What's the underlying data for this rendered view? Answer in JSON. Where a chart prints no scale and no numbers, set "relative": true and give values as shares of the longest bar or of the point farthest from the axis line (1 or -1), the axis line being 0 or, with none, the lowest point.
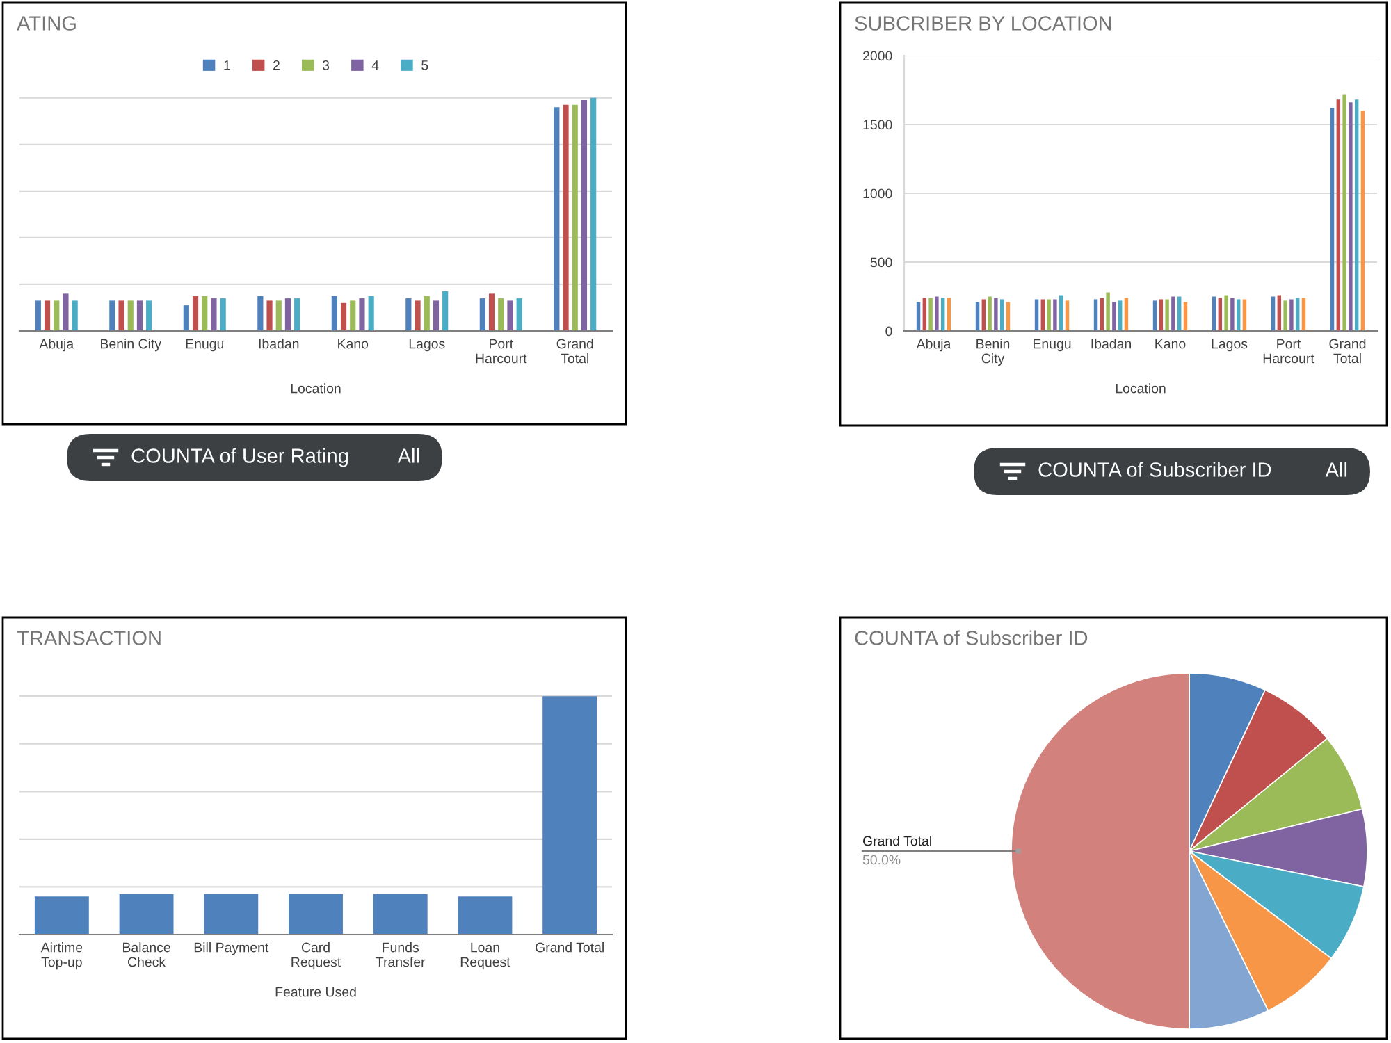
{
  "chart_data": [
    {
      "type": "bar",
      "title": "ATING",
      "xlabel": "Location",
      "categories": [
        "Abuja",
        "Benin City",
        "Enugu",
        "Ibadan",
        "Kano",
        "Lagos",
        "Port Harcourt",
        "Grand Total"
      ],
      "series": [
        {
          "name": "1",
          "color": "#4f81bd",
          "values": [
            0.13,
            0.13,
            0.11,
            0.15,
            0.15,
            0.14,
            0.14,
            0.96
          ]
        },
        {
          "name": "2",
          "color": "#c0504d",
          "values": [
            0.13,
            0.13,
            0.15,
            0.13,
            0.12,
            0.13,
            0.16,
            0.97
          ]
        },
        {
          "name": "3",
          "color": "#9bbb59",
          "values": [
            0.13,
            0.13,
            0.15,
            0.13,
            0.13,
            0.15,
            0.14,
            0.97
          ]
        },
        {
          "name": "4",
          "color": "#8064a2",
          "values": [
            0.16,
            0.13,
            0.14,
            0.14,
            0.14,
            0.13,
            0.13,
            0.99
          ]
        },
        {
          "name": "5",
          "color": "#4bacc6",
          "values": [
            0.13,
            0.13,
            0.14,
            0.14,
            0.15,
            0.17,
            0.14,
            1
          ]
        }
      ],
      "relative": true,
      "grid": "y",
      "legend": "top"
    },
    {
      "type": "bar",
      "title": "SUBCRIBER BY LOCATION",
      "xlabel": "Location",
      "categories": [
        "Abuja",
        "Benin City",
        "Enugu",
        "Ibadan",
        "Kano",
        "Lagos",
        "Port Harcourt",
        "Grand Total"
      ],
      "series": [
        {
          "color": "#4f81bd",
          "values": [
            210,
            210,
            230,
            230,
            220,
            250,
            250,
            1620
          ]
        },
        {
          "color": "#c0504d",
          "values": [
            240,
            230,
            230,
            240,
            230,
            240,
            260,
            1680
          ]
        },
        {
          "color": "#9bbb59",
          "values": [
            240,
            250,
            230,
            280,
            230,
            260,
            220,
            1720
          ]
        },
        {
          "color": "#8064a2",
          "values": [
            250,
            240,
            230,
            210,
            250,
            240,
            230,
            1660
          ]
        },
        {
          "color": "#4bacc6",
          "values": [
            240,
            230,
            260,
            220,
            250,
            230,
            240,
            1680
          ]
        },
        {
          "color": "#f79646",
          "values": [
            240,
            210,
            220,
            240,
            210,
            230,
            240,
            1600
          ]
        }
      ],
      "ylim": [
        0,
        2000
      ],
      "yticks": [
        0,
        500,
        1000,
        1500,
        2000
      ],
      "grid": "y"
    },
    {
      "type": "other",
      "title": "COUNTA of User Rating",
      "annotations": [
        "All"
      ]
    },
    {
      "type": "other",
      "title": "COUNTA of Subscriber ID",
      "annotations": [
        "All"
      ]
    },
    {
      "type": "bar",
      "title": "TRANSACTION",
      "xlabel": "Feature Used",
      "categories": [
        "Airtime Top-up",
        "Balance Check",
        "Bill Payment",
        "Card Request",
        "Funds Transfer",
        "Loan Request",
        "Grand Total"
      ],
      "values": [
        0.16,
        0.17,
        0.17,
        0.17,
        0.17,
        0.16,
        1
      ],
      "color": "#4f81bd",
      "relative": true,
      "grid": "y"
    },
    {
      "type": "pie",
      "title": "COUNTA of Subscriber ID",
      "categories": [
        null,
        null,
        null,
        null,
        null,
        null,
        null,
        "Grand Total"
      ],
      "values": [
        7.0,
        7.1,
        7.1,
        7.0,
        7.1,
        7.4,
        7.3,
        50.0
      ],
      "colors": [
        "#4f81bd",
        "#c0504d",
        "#9bbb59",
        "#8064a2",
        "#4bacc6",
        "#f79646",
        "#82a6d1",
        "#d2817c"
      ],
      "value_labels": [
        null,
        null,
        null,
        null,
        null,
        null,
        null,
        "50.0%"
      ]
    }
  ]
}
